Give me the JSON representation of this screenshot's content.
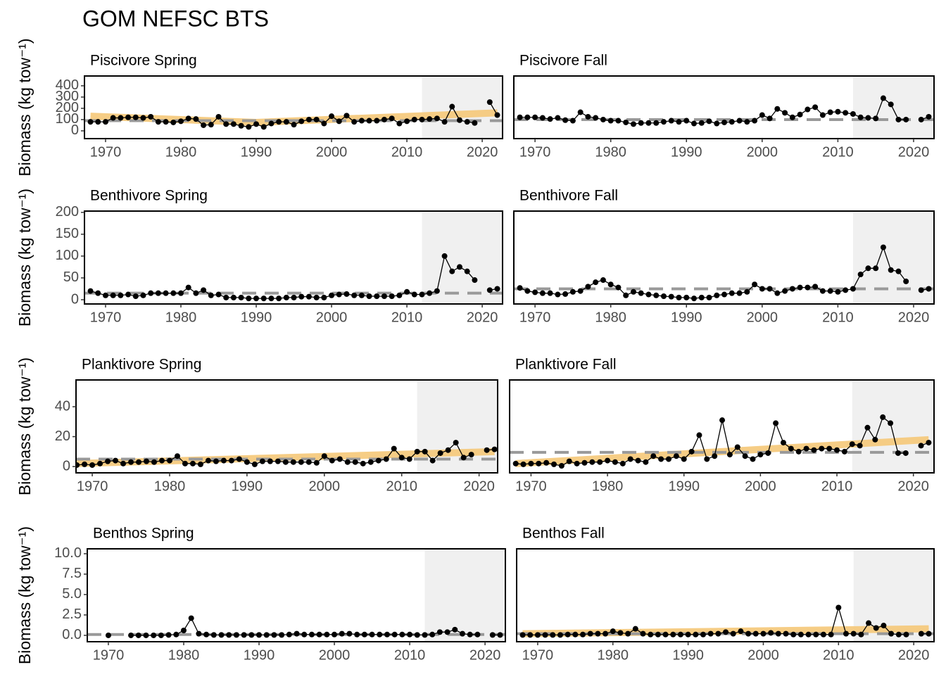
{
  "title": "GOM NEFSC BTS",
  "chart_data": [
    {
      "type": "line",
      "title": "Piscivore Spring",
      "y_label": "Biomass (kg tow⁻¹)",
      "color": "#000000",
      "x": [
        1968,
        1969,
        1970,
        1971,
        1972,
        1973,
        1974,
        1975,
        1976,
        1977,
        1978,
        1979,
        1980,
        1981,
        1982,
        1983,
        1984,
        1985,
        1986,
        1987,
        1988,
        1989,
        1990,
        1991,
        1992,
        1993,
        1994,
        1995,
        1996,
        1997,
        1998,
        1999,
        2000,
        2001,
        2002,
        2003,
        2004,
        2005,
        2006,
        2007,
        2008,
        2009,
        2010,
        2011,
        2012,
        2013,
        2014,
        2015,
        2016,
        2017,
        2018,
        2019,
        2020,
        2021,
        2022
      ],
      "values": [
        80,
        80,
        80,
        115,
        115,
        120,
        120,
        115,
        125,
        80,
        80,
        75,
        85,
        110,
        105,
        50,
        55,
        125,
        60,
        60,
        45,
        35,
        60,
        35,
        65,
        80,
        80,
        55,
        85,
        100,
        100,
        65,
        130,
        85,
        135,
        80,
        90,
        90,
        90,
        100,
        110,
        65,
        85,
        100,
        100,
        105,
        110,
        80,
        215,
        95,
        80,
        70,
        null,
        255,
        140
      ],
      "reference_line": 90,
      "trend_x": [
        1968,
        1990,
        2022
      ],
      "trend": [
        130,
        75,
        160
      ],
      "highlight_start": 2012,
      "xlim": [
        1967.2,
        2022.7
      ],
      "xticks": [
        1970,
        1980,
        1990,
        2000,
        2010,
        2020
      ],
      "ylim": [
        -69,
        487
      ],
      "yticks": [
        0,
        100,
        200,
        300,
        400
      ]
    },
    {
      "type": "line",
      "title": "Piscivore Fall",
      "color": "#000000",
      "x": [
        1968,
        1969,
        1970,
        1971,
        1972,
        1973,
        1974,
        1975,
        1976,
        1977,
        1978,
        1979,
        1980,
        1981,
        1982,
        1983,
        1984,
        1985,
        1986,
        1987,
        1988,
        1989,
        1990,
        1991,
        1992,
        1993,
        1994,
        1995,
        1996,
        1997,
        1998,
        1999,
        2000,
        2001,
        2002,
        2003,
        2004,
        2005,
        2006,
        2007,
        2008,
        2009,
        2010,
        2011,
        2012,
        2013,
        2014,
        2015,
        2016,
        2017,
        2018,
        2019,
        2020,
        2021,
        2022
      ],
      "values": [
        120,
        120,
        120,
        115,
        105,
        115,
        95,
        90,
        165,
        125,
        115,
        100,
        90,
        90,
        75,
        60,
        70,
        70,
        70,
        80,
        90,
        80,
        90,
        65,
        70,
        85,
        65,
        75,
        80,
        90,
        80,
        90,
        140,
        110,
        195,
        160,
        120,
        145,
        190,
        210,
        140,
        165,
        170,
        160,
        150,
        120,
        115,
        110,
        290,
        235,
        100,
        100,
        null,
        100,
        125
      ],
      "reference_line": 100,
      "highlight_start": 2012,
      "xlim": [
        1967.2,
        2022.7
      ],
      "xticks": [
        1970,
        1980,
        1990,
        2000,
        2010,
        2020
      ],
      "ylim": [
        -69,
        487
      ]
    },
    {
      "type": "line",
      "title": "Benthivore Spring",
      "y_label": "Biomass (kg tow⁻¹)",
      "color": "#000000",
      "x": [
        1968,
        1969,
        1970,
        1971,
        1972,
        1973,
        1974,
        1975,
        1976,
        1977,
        1978,
        1979,
        1980,
        1981,
        1982,
        1983,
        1984,
        1985,
        1986,
        1987,
        1988,
        1989,
        1990,
        1991,
        1992,
        1993,
        1994,
        1995,
        1996,
        1997,
        1998,
        1999,
        2000,
        2001,
        2002,
        2003,
        2004,
        2005,
        2006,
        2007,
        2008,
        2009,
        2010,
        2011,
        2012,
        2013,
        2014,
        2015,
        2016,
        2017,
        2018,
        2019,
        2020,
        2021,
        2022
      ],
      "values": [
        20,
        15,
        10,
        10,
        10,
        12,
        8,
        10,
        15,
        15,
        15,
        15,
        15,
        28,
        15,
        22,
        10,
        12,
        5,
        5,
        5,
        3,
        3,
        3,
        3,
        3,
        5,
        5,
        7,
        7,
        5,
        5,
        10,
        12,
        13,
        10,
        10,
        8,
        8,
        8,
        8,
        10,
        18,
        12,
        12,
        15,
        20,
        100,
        65,
        75,
        65,
        45,
        null,
        22,
        25
      ],
      "reference_line": 15,
      "highlight_start": 2012,
      "xlim": [
        1967.2,
        2022.7
      ],
      "xticks": [
        1970,
        1980,
        1990,
        2000,
        2010,
        2020
      ],
      "ylim": [
        -9.7,
        203
      ],
      "yticks": [
        0,
        50,
        100,
        150,
        200
      ]
    },
    {
      "type": "line",
      "title": "Benthivore Fall",
      "color": "#000000",
      "x": [
        1968,
        1969,
        1970,
        1971,
        1972,
        1973,
        1974,
        1975,
        1976,
        1977,
        1978,
        1979,
        1980,
        1981,
        1982,
        1983,
        1984,
        1985,
        1986,
        1987,
        1988,
        1989,
        1990,
        1991,
        1992,
        1993,
        1994,
        1995,
        1996,
        1997,
        1998,
        1999,
        2000,
        2001,
        2002,
        2003,
        2004,
        2005,
        2006,
        2007,
        2008,
        2009,
        2010,
        2011,
        2012,
        2013,
        2014,
        2015,
        2016,
        2017,
        2018,
        2019,
        2020,
        2021,
        2022
      ],
      "values": [
        27,
        20,
        17,
        15,
        15,
        12,
        13,
        18,
        20,
        30,
        40,
        45,
        35,
        28,
        10,
        18,
        15,
        12,
        10,
        8,
        7,
        5,
        5,
        3,
        5,
        5,
        10,
        12,
        15,
        15,
        18,
        35,
        25,
        25,
        15,
        20,
        25,
        28,
        28,
        30,
        20,
        20,
        18,
        22,
        25,
        58,
        72,
        72,
        120,
        68,
        65,
        42,
        null,
        22,
        25
      ],
      "reference_line": 25,
      "highlight_start": 2012,
      "xlim": [
        1967.2,
        2022.7
      ],
      "xticks": [
        1970,
        1980,
        1990,
        2000,
        2010,
        2020
      ],
      "ylim": [
        -9.7,
        203
      ]
    },
    {
      "type": "line",
      "title": "Planktivore Spring",
      "y_label": "Biomass (kg tow⁻¹)",
      "color": "#000000",
      "x": [
        1968,
        1969,
        1970,
        1971,
        1972,
        1973,
        1974,
        1975,
        1976,
        1977,
        1978,
        1979,
        1980,
        1981,
        1982,
        1983,
        1984,
        1985,
        1986,
        1987,
        1988,
        1989,
        1990,
        1991,
        1992,
        1993,
        1994,
        1995,
        1996,
        1997,
        1998,
        1999,
        2000,
        2001,
        2002,
        2003,
        2004,
        2005,
        2006,
        2007,
        2008,
        2009,
        2010,
        2011,
        2012,
        2013,
        2014,
        2015,
        2016,
        2017,
        2018,
        2019,
        2020,
        2021,
        2022
      ],
      "values": [
        1,
        1.5,
        1,
        2,
        3.5,
        4,
        2,
        3,
        3,
        3.5,
        3,
        4,
        4,
        7,
        2,
        2,
        1.5,
        4,
        3.5,
        4,
        4,
        5,
        3,
        1.5,
        3.5,
        3.5,
        3.5,
        3,
        3,
        3,
        3,
        2.5,
        7,
        4,
        5,
        3,
        3,
        2,
        3,
        4,
        5,
        12,
        6,
        5,
        10,
        10,
        4,
        9,
        11,
        16,
        6,
        8,
        null,
        11,
        11.5
      ],
      "reference_line": 5,
      "trend_x": [
        1968,
        2022
      ],
      "trend": [
        2,
        10
      ],
      "highlight_start": 2012,
      "xlim": [
        1967.9,
        2022.4
      ],
      "xticks": [
        1970,
        1980,
        1990,
        2000,
        2010,
        2020
      ],
      "ylim": [
        -4.2,
        57.9
      ],
      "yticks": [
        0,
        20,
        40
      ]
    },
    {
      "type": "line",
      "title": "Planktivore Fall",
      "color": "#000000",
      "x": [
        1968,
        1969,
        1970,
        1971,
        1972,
        1973,
        1974,
        1975,
        1976,
        1977,
        1978,
        1979,
        1980,
        1981,
        1982,
        1983,
        1984,
        1985,
        1986,
        1987,
        1988,
        1989,
        1990,
        1991,
        1992,
        1993,
        1994,
        1995,
        1996,
        1997,
        1998,
        1999,
        2000,
        2001,
        2002,
        2003,
        2004,
        2005,
        2006,
        2007,
        2008,
        2009,
        2010,
        2011,
        2012,
        2013,
        2014,
        2015,
        2016,
        2017,
        2018,
        2019,
        2020,
        2021,
        2022
      ],
      "values": [
        2,
        1.5,
        2,
        2,
        2.5,
        1.5,
        0.5,
        3.5,
        2,
        2.5,
        3,
        3,
        4,
        3,
        2,
        5,
        4,
        3,
        7,
        5,
        5,
        7,
        5,
        10,
        21,
        5,
        7,
        31,
        8,
        13,
        7,
        5,
        8,
        9,
        29,
        16,
        12,
        10,
        12,
        11,
        12,
        12,
        11,
        10,
        15,
        14,
        26,
        18,
        33,
        29,
        9,
        9,
        null,
        14,
        16
      ],
      "reference_line": 9.5,
      "trend_x": [
        1968,
        2022
      ],
      "trend": [
        2,
        18
      ],
      "highlight_start": 2012,
      "xlim": [
        1967.2,
        2022.7
      ],
      "xticks": [
        1970,
        1980,
        1990,
        2000,
        2010,
        2020
      ],
      "ylim": [
        -4.2,
        57.9
      ]
    },
    {
      "type": "line",
      "title": "Benthos Spring",
      "y_label": "Biomass (kg tow⁻¹)",
      "color": "#000000",
      "x": [
        1968,
        1969,
        1970,
        1971,
        1972,
        1973,
        1974,
        1975,
        1976,
        1977,
        1978,
        1979,
        1980,
        1981,
        1982,
        1983,
        1984,
        1985,
        1986,
        1987,
        1988,
        1989,
        1990,
        1991,
        1992,
        1993,
        1994,
        1995,
        1996,
        1997,
        1998,
        1999,
        2000,
        2001,
        2002,
        2003,
        2004,
        2005,
        2006,
        2007,
        2008,
        2009,
        2010,
        2011,
        2012,
        2013,
        2014,
        2015,
        2016,
        2017,
        2018,
        2019,
        2020,
        2021,
        2022
      ],
      "values": [
        null,
        null,
        0,
        null,
        null,
        0,
        0,
        0,
        0,
        0,
        0.05,
        0.1,
        0.6,
        2.1,
        0.2,
        0.1,
        0.05,
        0.05,
        0.05,
        0.05,
        0.05,
        0.05,
        0.05,
        0.05,
        0.05,
        0.05,
        0.1,
        0.2,
        0.1,
        0.1,
        0.1,
        0.1,
        0.1,
        0.2,
        0.2,
        0.1,
        0.1,
        0.1,
        0.1,
        0.1,
        0.1,
        0.1,
        0.1,
        0.05,
        0.05,
        0.1,
        0.4,
        0.4,
        0.7,
        0.2,
        0.1,
        0.1,
        null,
        0.05,
        0.05
      ],
      "reference_line": 0.1,
      "highlight_start": 2012,
      "xlim": [
        1967.2,
        2022.7
      ],
      "xticks": [
        1970,
        1980,
        1990,
        2000,
        2010,
        2020
      ],
      "ylim": [
        -0.78,
        10.6
      ],
      "yticks": [
        {
          "value": 0,
          "label": "0.0"
        },
        {
          "value": 2.5,
          "label": "2.5"
        },
        {
          "value": 5,
          "label": "5.0"
        },
        {
          "value": 7.5,
          "label": "7.5"
        },
        {
          "value": 10,
          "label": "10.0"
        }
      ]
    },
    {
      "type": "line",
      "title": "Benthos Fall",
      "color": "#000000",
      "x": [
        1968,
        1969,
        1970,
        1971,
        1972,
        1973,
        1974,
        1975,
        1976,
        1977,
        1978,
        1979,
        1980,
        1981,
        1982,
        1983,
        1984,
        1985,
        1986,
        1987,
        1988,
        1989,
        1990,
        1991,
        1992,
        1993,
        1994,
        1995,
        1996,
        1997,
        1998,
        1999,
        2000,
        2001,
        2002,
        2003,
        2004,
        2005,
        2006,
        2007,
        2008,
        2009,
        2010,
        2011,
        2012,
        2013,
        2014,
        2015,
        2016,
        2017,
        2018,
        2019,
        2020,
        2021,
        2022
      ],
      "values": [
        0.05,
        0.05,
        0.05,
        0.05,
        0.05,
        0.05,
        0.1,
        0.1,
        0.1,
        0.2,
        0.2,
        0.2,
        0.5,
        0.3,
        0.2,
        0.8,
        0.2,
        0.1,
        0.1,
        0.1,
        0.1,
        0.1,
        0.1,
        0.1,
        0.1,
        0.2,
        0.2,
        0.4,
        0.2,
        0.5,
        0.2,
        0.2,
        0.2,
        0.3,
        0.2,
        0.2,
        0.1,
        0.1,
        0.1,
        0.1,
        0.1,
        0.1,
        3.4,
        0.2,
        0.2,
        0.1,
        1.5,
        0.9,
        1.2,
        0.2,
        0.1,
        0.1,
        null,
        0.2,
        0.2
      ],
      "reference_line": 0.2,
      "trend_x": [
        1968,
        2022
      ],
      "trend": [
        0.2,
        0.8
      ],
      "highlight_start": 2012,
      "xlim": [
        1967.2,
        2022.7
      ],
      "xticks": [
        1970,
        1980,
        1990,
        2000,
        2010,
        2020
      ],
      "ylim": [
        -0.78,
        10.6
      ]
    }
  ]
}
